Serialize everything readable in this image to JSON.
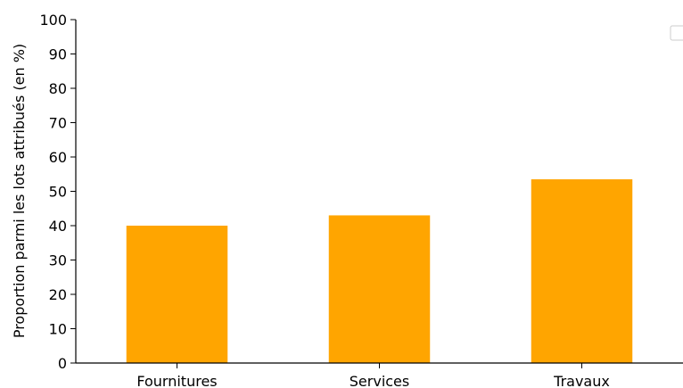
{
  "chart_data": {
    "type": "bar",
    "categories": [
      "Fournitures",
      "Services",
      "Travaux"
    ],
    "values": [
      40,
      43,
      53.5
    ],
    "ylabel": "Proportion parmi les lots attribués (en %)",
    "xlabel": "",
    "ylim": [
      0,
      100
    ],
    "yticks": [
      0,
      10,
      20,
      30,
      40,
      50,
      60,
      70,
      80,
      90,
      100
    ],
    "bar_color": "#FFA500",
    "grid": false,
    "legend": {
      "placement": "top-right",
      "entries": []
    }
  }
}
